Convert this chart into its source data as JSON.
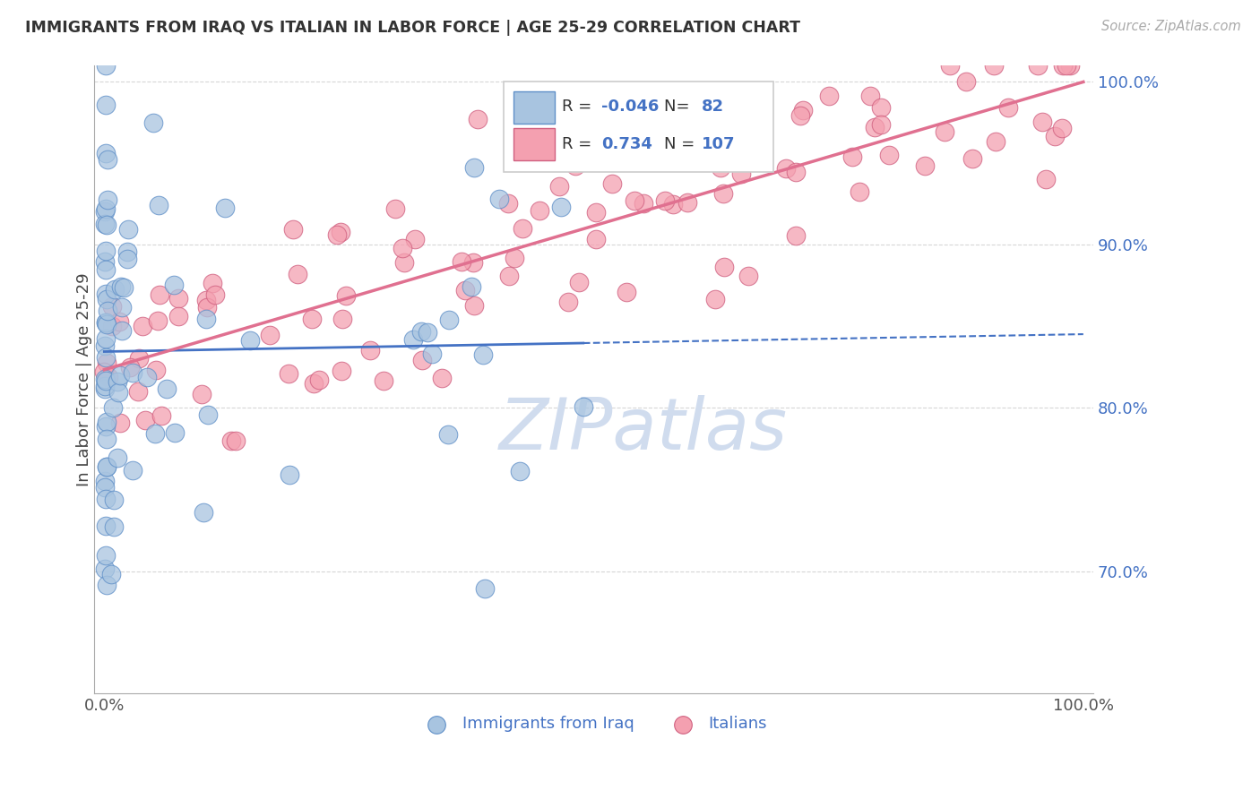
{
  "title": "IMMIGRANTS FROM IRAQ VS ITALIAN IN LABOR FORCE | AGE 25-29 CORRELATION CHART",
  "source": "Source: ZipAtlas.com",
  "ylabel": "In Labor Force | Age 25-29",
  "legend_R_iraq": "-0.046",
  "legend_N_iraq": "82",
  "legend_R_italian": "0.734",
  "legend_N_italian": "107",
  "iraq_face_color": "#a8c4e0",
  "iraq_edge_color": "#6090c8",
  "italian_face_color": "#f4a0b0",
  "italian_edge_color": "#d06080",
  "iraq_line_color": "#4472c4",
  "italian_line_color": "#e07090",
  "legend_blue_color": "#4472c4",
  "grid_color": "#cccccc",
  "title_color": "#333333",
  "source_color": "#aaaaaa",
  "watermark_color": "#d0dcee",
  "ylim": [
    0.625,
    1.01
  ],
  "xlim": [
    -0.01,
    1.01
  ],
  "ytick_vals": [
    0.7,
    0.8,
    0.9,
    1.0
  ],
  "ytick_labels": [
    "70.0%",
    "80.0%",
    "90.0%",
    "100.0%"
  ]
}
